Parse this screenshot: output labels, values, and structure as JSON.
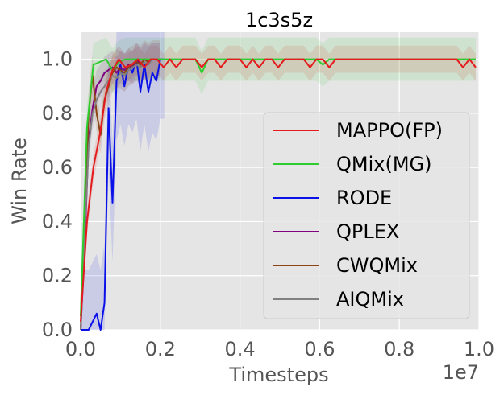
{
  "chart_data": {
    "type": "line",
    "title": "1c3s5z",
    "xlabel": "Timesteps",
    "ylabel": "Win Rate",
    "x_offset_label": "1e7",
    "xlim": [
      0,
      1.0
    ],
    "ylim": [
      0,
      1.1
    ],
    "xticks": [
      "0.0",
      "0.2",
      "0.4",
      "0.6",
      "0.8",
      "1.0"
    ],
    "yticks": [
      "0.0",
      "0.2",
      "0.4",
      "0.6",
      "0.8",
      "1.0"
    ],
    "grid": true,
    "legend_position": "center-right",
    "colors": {
      "background": "#e5e5e5",
      "grid": "#ffffff"
    },
    "series": [
      {
        "name": "MAPPO(FP)",
        "color": "#e41a1c",
        "x": [
          0.0,
          0.016,
          0.032,
          0.048,
          0.064,
          0.08,
          0.096,
          0.112,
          0.128,
          0.144,
          0.16,
          0.176,
          0.192,
          0.208,
          0.224,
          0.24,
          0.256,
          0.272,
          0.288,
          0.304,
          0.32,
          0.336,
          0.352,
          0.368,
          0.384,
          0.4,
          0.416,
          0.432,
          0.448,
          0.464,
          0.48,
          0.496,
          0.512,
          0.528,
          0.544,
          0.56,
          0.576,
          0.592,
          0.608,
          0.624,
          0.64,
          0.656,
          0.672,
          0.688,
          0.704,
          0.72,
          0.736,
          0.752,
          0.768,
          0.784,
          0.8,
          0.816,
          0.832,
          0.848,
          0.864,
          0.88,
          0.896,
          0.912,
          0.928,
          0.944,
          0.96,
          0.976,
          0.992
        ],
        "y": [
          0.03,
          0.4,
          0.6,
          0.72,
          0.88,
          0.96,
          1.0,
          0.97,
          0.98,
          1.0,
          0.97,
          1.0,
          1.0,
          0.97,
          1.0,
          0.97,
          1.0,
          1.0,
          1.0,
          0.97,
          1.0,
          1.0,
          0.97,
          1.0,
          1.0,
          1.0,
          0.97,
          1.0,
          0.97,
          1.0,
          1.0,
          0.97,
          1.0,
          1.0,
          1.0,
          1.0,
          0.97,
          1.0,
          1.0,
          0.97,
          1.0,
          1.0,
          1.0,
          1.0,
          1.0,
          1.0,
          1.0,
          1.0,
          1.0,
          1.0,
          1.0,
          1.0,
          1.0,
          1.0,
          1.0,
          1.0,
          1.0,
          1.0,
          1.0,
          1.0,
          0.97,
          1.0,
          0.97
        ]
      },
      {
        "name": "QMix(MG)",
        "color": "#2ecc2e",
        "x": [
          0.0,
          0.016,
          0.032,
          0.048,
          0.064,
          0.08,
          0.096,
          0.112,
          0.128,
          0.144,
          0.16,
          0.176,
          0.192,
          0.208,
          0.224,
          0.24,
          0.256,
          0.272,
          0.288,
          0.304,
          0.32,
          0.336,
          0.352,
          0.368,
          0.384,
          0.4,
          0.416,
          0.432,
          0.448,
          0.464,
          0.48,
          0.496,
          0.512,
          0.528,
          0.544,
          0.56,
          0.576,
          0.592,
          0.608,
          0.624,
          0.64,
          0.656,
          0.672,
          0.688,
          0.704,
          0.72,
          0.736,
          0.752,
          0.768,
          0.784,
          0.8,
          0.816,
          0.832,
          0.848,
          0.864,
          0.88,
          0.896,
          0.912,
          0.928,
          0.944,
          0.96,
          0.976,
          0.992
        ],
        "y": [
          0.05,
          0.75,
          0.98,
          0.99,
          1.0,
          0.96,
          0.99,
          1.0,
          1.0,
          1.0,
          1.0,
          1.0,
          1.0,
          1.0,
          1.0,
          1.0,
          1.0,
          1.0,
          1.0,
          0.95,
          1.0,
          1.0,
          1.0,
          1.0,
          1.0,
          1.0,
          1.0,
          1.0,
          1.0,
          1.0,
          1.0,
          1.0,
          1.0,
          1.0,
          1.0,
          1.0,
          1.0,
          1.0,
          0.98,
          1.0,
          1.0,
          1.0,
          1.0,
          1.0,
          1.0,
          1.0,
          1.0,
          1.0,
          1.0,
          1.0,
          1.0,
          1.0,
          1.0,
          1.0,
          1.0,
          1.0,
          1.0,
          1.0,
          1.0,
          1.0,
          1.0,
          1.0,
          1.0
        ]
      },
      {
        "name": "RODE",
        "color": "#0a10e8",
        "x": [
          0.0,
          0.02,
          0.04,
          0.05,
          0.06,
          0.07,
          0.08,
          0.09,
          0.1,
          0.11,
          0.12,
          0.13,
          0.14,
          0.15,
          0.16,
          0.17,
          0.18,
          0.19,
          0.2,
          0.21
        ],
        "y": [
          0.0,
          0.0,
          0.06,
          0.0,
          0.1,
          0.82,
          0.47,
          0.92,
          0.98,
          0.9,
          0.98,
          0.95,
          1.0,
          0.88,
          0.98,
          0.88,
          0.95,
          0.92,
          1.0,
          1.0
        ]
      },
      {
        "name": "QPLEX",
        "color": "#800080",
        "x": [
          0.0,
          0.01,
          0.02,
          0.03,
          0.04,
          0.05,
          0.06,
          0.07,
          0.08,
          0.09,
          0.1,
          0.11,
          0.12,
          0.13,
          0.14,
          0.15,
          0.16,
          0.17,
          0.18,
          0.19,
          0.2
        ],
        "y": [
          0.0,
          0.3,
          0.7,
          0.82,
          0.9,
          0.92,
          0.95,
          0.96,
          0.97,
          0.95,
          0.97,
          0.96,
          0.98,
          0.97,
          1.0,
          0.98,
          1.0,
          0.99,
          1.0,
          1.0,
          1.0
        ]
      },
      {
        "name": "CWQMix",
        "color": "#8b4513",
        "x": [
          0.0,
          0.01,
          0.02,
          0.03,
          0.04,
          0.05,
          0.06,
          0.07,
          0.08,
          0.09,
          0.1,
          0.11,
          0.12,
          0.13,
          0.14,
          0.15,
          0.16,
          0.17,
          0.18,
          0.19,
          0.2
        ],
        "y": [
          0.0,
          0.4,
          0.8,
          0.94,
          0.8,
          0.72,
          0.85,
          0.9,
          0.95,
          0.97,
          0.96,
          0.95,
          0.97,
          0.98,
          0.99,
          0.98,
          1.0,
          0.99,
          1.0,
          1.0,
          1.0
        ]
      },
      {
        "name": "AIQMix",
        "color": "#808080",
        "x": [
          0.0,
          0.01,
          0.02,
          0.03,
          0.04,
          0.05,
          0.06,
          0.07,
          0.08,
          0.09,
          0.1,
          0.11,
          0.12,
          0.13,
          0.14,
          0.15,
          0.16,
          0.17,
          0.18,
          0.19,
          0.2
        ],
        "y": [
          0.0,
          0.35,
          0.68,
          0.8,
          0.85,
          0.88,
          0.9,
          0.92,
          0.94,
          0.93,
          0.95,
          0.94,
          0.96,
          0.97,
          0.98,
          0.97,
          0.99,
          0.98,
          1.0,
          1.0,
          1.0
        ]
      }
    ]
  }
}
